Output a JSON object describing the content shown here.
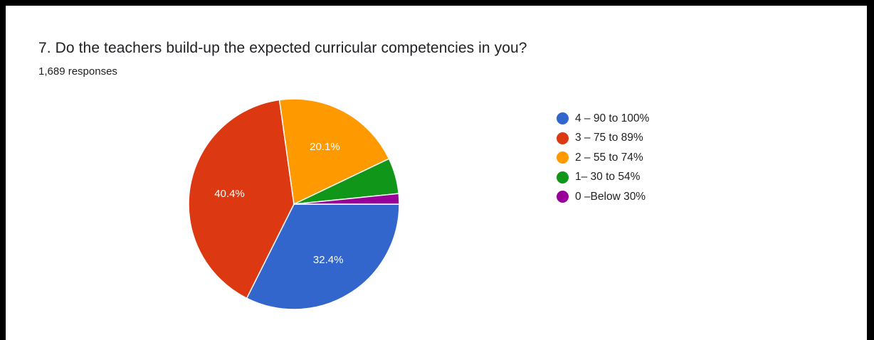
{
  "title": "7. Do the teachers build-up the expected curricular competencies in you?",
  "subtitle": "1,689 responses",
  "chart_data": {
    "type": "pie",
    "title": "7. Do the teachers build-up the expected curricular competencies in you?",
    "subtitle": "1,689 responses",
    "legend_position": "right",
    "slices": [
      {
        "label": "4 – 90 to 100%",
        "value": 32.4,
        "color": "#3366CC",
        "data_label": "32.4%"
      },
      {
        "label": "3 – 75 to 89%",
        "value": 40.4,
        "color": "#DC3912",
        "data_label": "40.4%"
      },
      {
        "label": "2 – 55 to 74%",
        "value": 20.1,
        "color": "#FF9900",
        "data_label": "20.1%"
      },
      {
        "label": "1– 30 to 54%",
        "value": 5.5,
        "color": "#109618",
        "data_label": ""
      },
      {
        "label": "0 –Below 30%",
        "value": 1.6,
        "color": "#990099",
        "data_label": ""
      }
    ]
  }
}
